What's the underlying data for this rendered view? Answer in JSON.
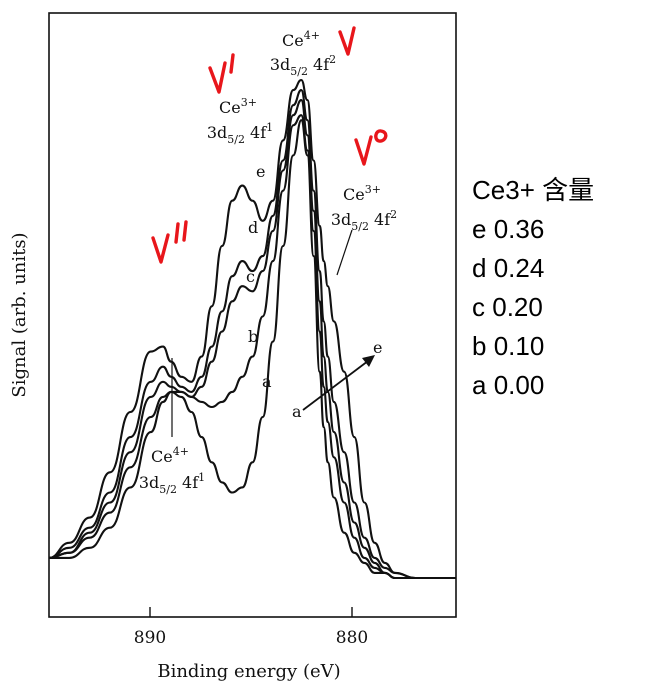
{
  "chart_data": {
    "type": "line",
    "title": "",
    "xlabel": "Binding energy (eV)",
    "ylabel": "Signal (arb. units)",
    "xlim": [
      895,
      875
    ],
    "x_reversed": true,
    "xticks": [
      890,
      880
    ],
    "x": [
      895,
      894,
      893,
      892,
      891,
      890,
      889.4,
      889,
      888.5,
      888,
      887.5,
      887,
      886.5,
      886,
      885.5,
      885,
      884.5,
      884,
      883.5,
      883,
      882.6,
      882.3,
      882,
      881.7,
      881.5,
      881.3,
      881,
      880.5,
      880,
      879.5,
      879,
      878.5,
      878,
      877,
      876,
      875
    ],
    "series": [
      {
        "name": "a",
        "values": [
          0.05,
          0.05,
          0.07,
          0.11,
          0.19,
          0.3,
          0.36,
          0.38,
          0.37,
          0.34,
          0.29,
          0.24,
          0.2,
          0.18,
          0.19,
          0.24,
          0.33,
          0.48,
          0.67,
          0.85,
          0.92,
          0.85,
          0.65,
          0.42,
          0.31,
          0.24,
          0.17,
          0.1,
          0.06,
          0.04,
          0.02,
          0.02,
          0.01,
          0.01,
          0.01,
          0.01
        ]
      },
      {
        "name": "b",
        "values": [
          0.05,
          0.06,
          0.09,
          0.14,
          0.23,
          0.33,
          0.37,
          0.38,
          0.38,
          0.37,
          0.36,
          0.35,
          0.36,
          0.38,
          0.41,
          0.45,
          0.53,
          0.64,
          0.78,
          0.91,
          0.93,
          0.86,
          0.7,
          0.5,
          0.39,
          0.32,
          0.25,
          0.16,
          0.09,
          0.05,
          0.03,
          0.02,
          0.01,
          0.01,
          0.01,
          0.01
        ]
      },
      {
        "name": "c",
        "values": [
          0.05,
          0.06,
          0.1,
          0.16,
          0.26,
          0.37,
          0.4,
          0.39,
          0.38,
          0.37,
          0.39,
          0.44,
          0.5,
          0.56,
          0.59,
          0.58,
          0.62,
          0.7,
          0.82,
          0.93,
          0.96,
          0.89,
          0.74,
          0.56,
          0.45,
          0.38,
          0.3,
          0.2,
          0.12,
          0.07,
          0.04,
          0.02,
          0.01,
          0.01,
          0.01,
          0.01
        ]
      },
      {
        "name": "d",
        "values": [
          0.05,
          0.07,
          0.11,
          0.18,
          0.29,
          0.4,
          0.43,
          0.41,
          0.39,
          0.38,
          0.41,
          0.47,
          0.54,
          0.61,
          0.64,
          0.62,
          0.65,
          0.73,
          0.84,
          0.95,
          0.98,
          0.92,
          0.78,
          0.62,
          0.52,
          0.45,
          0.36,
          0.26,
          0.16,
          0.09,
          0.05,
          0.03,
          0.02,
          0.01,
          0.01,
          0.01
        ]
      },
      {
        "name": "e",
        "values": [
          0.05,
          0.08,
          0.13,
          0.22,
          0.34,
          0.46,
          0.47,
          0.44,
          0.41,
          0.4,
          0.45,
          0.55,
          0.67,
          0.76,
          0.79,
          0.76,
          0.72,
          0.76,
          0.88,
          0.98,
          1.0,
          0.96,
          0.84,
          0.71,
          0.64,
          0.59,
          0.52,
          0.42,
          0.29,
          0.16,
          0.08,
          0.04,
          0.02,
          0.01,
          0.01,
          0.01
        ]
      }
    ],
    "annotations": [
      {
        "id": "ce4_v",
        "ion": "Ce",
        "charge": "4+",
        "config": "3d",
        "sub": "5/2",
        "orb": " 4f",
        "sup": "2"
      },
      {
        "id": "ce3_vprime",
        "ion": "Ce",
        "charge": "3+",
        "config": "3d",
        "sub": "5/2",
        "orb": " 4f",
        "sup": "1"
      },
      {
        "id": "ce3_v0",
        "ion": "Ce",
        "charge": "3+",
        "config": "3d",
        "sub": "5/2",
        "orb": " 4f",
        "sup": "2"
      },
      {
        "id": "ce4_vpp",
        "ion": "Ce",
        "charge": "4+",
        "config": "3d",
        "sub": "5/2",
        "orb": " 4f",
        "sup": "1"
      }
    ],
    "arrow": {
      "from": "a",
      "to": "e"
    },
    "handwritten_notes": [
      "v",
      "v'",
      "v0",
      "v''"
    ],
    "grid": false,
    "legend": "none"
  },
  "side_legend": {
    "title": "Ce3+ 含量",
    "rows": [
      {
        "label": "e",
        "value": "0.36"
      },
      {
        "label": "d",
        "value": "0.24"
      },
      {
        "label": "c",
        "value": "0.20"
      },
      {
        "label": "b",
        "value": "0.10"
      },
      {
        "label": "a",
        "value": "0.00"
      }
    ]
  },
  "colors": {
    "line": "#111111",
    "handwriting": "#e8161b"
  }
}
